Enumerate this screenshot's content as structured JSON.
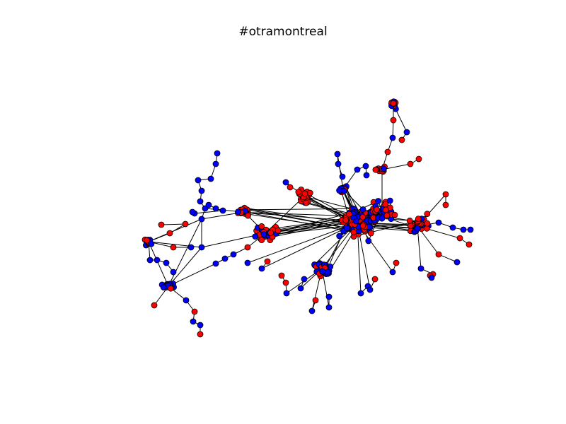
{
  "title": "#otramontreal",
  "colors": {
    "background": "#ffffff",
    "node_group_a": "#0000ff",
    "node_group_b": "#ff0000",
    "node_outline": "#000000",
    "edge": "#000000"
  }
}
